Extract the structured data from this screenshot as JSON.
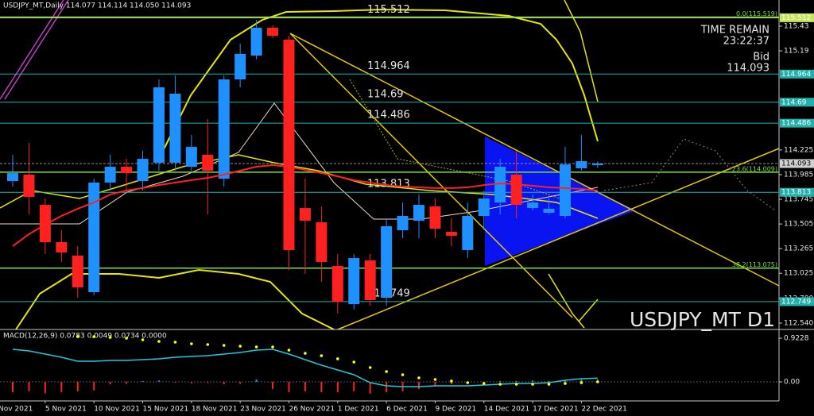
{
  "chart_data": [
    {
      "type": "candlestick",
      "header": "USDJPY_MT,Daily 114.077 114.114 114.050 114.093",
      "symbol_label": "USDJPY_MT D1",
      "timer_title": "TIME REMAIN",
      "timer": "23:22:37",
      "bid_title": "Bid",
      "edge_label": "Nov 2021",
      "categories": [
        null,
        null,
        "5 Nov 2021",
        null,
        null,
        "10 Nov 2021",
        null,
        null,
        "15 Nov 2021",
        null,
        null,
        "18 Nov 2021",
        null,
        null,
        "23 Nov 2021",
        null,
        null,
        "26 Nov 2021",
        null,
        null,
        "1 Dec 2021",
        null,
        null,
        "6 Dec 2021",
        null,
        null,
        "9 Dec 2021",
        null,
        null,
        "14 Dec 2021",
        null,
        null,
        "17 Dec 2021",
        null,
        null,
        "22 Dec 2021",
        null
      ],
      "open": [
        113.923,
        113.985,
        113.691,
        113.328,
        113.197,
        112.841,
        113.908,
        114.062,
        113.923,
        114.101,
        114.101,
        114.062,
        114.178,
        113.946,
        114.912,
        115.144,
        115.415,
        115.299,
        113.66,
        113.521,
        113.096,
        112.725,
        113.15,
        112.787,
        113.444,
        113.537,
        113.676,
        113.428,
        113.251,
        113.583,
        113.714,
        113.985,
        113.66,
        113.614,
        113.583,
        114.047,
        114.077
      ],
      "high": [
        114.178,
        114.294,
        113.753,
        113.444,
        113.289,
        113.946,
        114.178,
        114.139,
        114.217,
        114.912,
        114.951,
        114.371,
        114.526,
        114.951,
        115.26,
        115.492,
        115.438,
        115.337,
        113.946,
        113.676,
        113.212,
        113.212,
        113.212,
        113.56,
        113.714,
        113.792,
        113.753,
        113.56,
        113.714,
        113.83,
        114.139,
        114.217,
        113.792,
        113.753,
        114.255,
        114.371,
        114.114
      ],
      "low": [
        113.869,
        113.598,
        113.212,
        113.135,
        112.787,
        112.81,
        113.83,
        113.83,
        113.83,
        114.024,
        114.024,
        114.024,
        113.598,
        113.869,
        114.835,
        115.105,
        115.314,
        113.057,
        113.019,
        112.942,
        112.632,
        112.671,
        112.71,
        112.71,
        113.367,
        113.367,
        113.367,
        113.289,
        113.173,
        113.444,
        113.598,
        113.56,
        113.637,
        113.598,
        113.56,
        114.024,
        114.05
      ],
      "close": [
        114.0,
        113.769,
        113.328,
        113.228,
        112.888,
        113.908,
        114.062,
        114.0,
        114.139,
        114.835,
        114.773,
        114.255,
        114.024,
        114.912,
        115.16,
        115.415,
        115.337,
        113.251,
        113.537,
        113.135,
        112.748,
        113.173,
        112.764,
        113.483,
        113.583,
        113.691,
        113.459,
        113.39,
        113.583,
        113.753,
        114.062,
        113.691,
        113.714,
        113.653,
        114.085,
        114.116,
        114.093
      ],
      "up_color": "#1e90ff",
      "down_color": "#ff2020",
      "ma": {
        "color": "#ff2020",
        "values": [
          113.289,
          113.405,
          113.498,
          113.583,
          113.653,
          113.714,
          113.792,
          113.83,
          113.854,
          113.884,
          113.908,
          113.931,
          113.954,
          113.985,
          114.024,
          114.062,
          114.078,
          114.062,
          114.031,
          114.0,
          113.969,
          113.931,
          113.908,
          113.884,
          113.869,
          113.861,
          113.854,
          113.854,
          113.861,
          113.884,
          113.9,
          113.892,
          113.877,
          113.861,
          113.854,
          113.846,
          113.83
        ]
      },
      "levels": [
        {
          "value": 115.512,
          "color": "#c8e65a"
        },
        {
          "value": 114.964,
          "color": "#20b2aa"
        },
        {
          "value": 114.69,
          "color": "#20b2aa"
        },
        {
          "value": 114.486,
          "color": "#20b2aa"
        },
        {
          "value": 113.813,
          "color": "#20b2aa"
        },
        {
          "value": 112.749,
          "color": "#20b2aa"
        }
      ],
      "fib_levels": [
        {
          "value": 115.519,
          "label": "0.0(115.519)"
        },
        {
          "value": 114.009,
          "label": "23.6(114.009)"
        },
        {
          "value": 113.075,
          "label": "38.2(113.075)"
        }
      ],
      "fib_color": "#7cdc3c",
      "ylim": [
        112.478,
        115.685
      ],
      "yticks": [
        115.43,
        115.19,
        114.225,
        113.985,
        113.745,
        113.505,
        113.265,
        113.025,
        {
          "value": 112.78,
          "label": "112.780"
        },
        {
          "value": 112.54,
          "label": "112.540"
        }
      ]
    },
    {
      "type": "macd",
      "label": "MACD(12,26,9) 0.0783 0.0049 0.0734 0.0000",
      "histogram": [
        -0.22,
        -0.2,
        -0.24,
        -0.22,
        -0.2,
        -0.18,
        -0.05,
        -0.04,
        0.02,
        0.03,
        -0.02,
        -0.03,
        -0.02,
        -0.05,
        -0.04,
        0.05,
        -0.15,
        -0.22,
        -0.2,
        -0.22,
        -0.22,
        -0.2,
        -0.25,
        -0.22,
        -0.2,
        -0.15,
        -0.1,
        -0.05,
        -0.03,
        -0.02,
        0.02,
        0.02,
        0.03,
        0.02,
        0.03,
        0.05,
        0.05
      ],
      "line": {
        "color": "#20c8dc",
        "values": [
          0.688,
          0.654,
          0.587,
          0.52,
          0.436,
          0.436,
          0.453,
          0.453,
          0.47,
          0.487,
          0.52,
          0.537,
          0.554,
          0.587,
          0.621,
          0.671,
          0.688,
          0.587,
          0.47,
          0.352,
          0.252,
          0.151,
          -0.017,
          -0.084,
          -0.101,
          -0.101,
          -0.084,
          -0.084,
          -0.084,
          -0.067,
          -0.05,
          -0.034,
          -0.034,
          -0.017,
          0.034,
          0.067,
          0.078
        ]
      },
      "signal": {
        "color": "#ffff00",
        "values": [
          null,
          null,
          null,
          null,
          0.956,
          0.956,
          0.94,
          0.923,
          0.889,
          0.856,
          0.839,
          0.805,
          0.789,
          0.772,
          0.755,
          0.738,
          0.738,
          0.671,
          0.604,
          0.554,
          0.487,
          0.419,
          0.302,
          0.218,
          0.151,
          0.084,
          0.05,
          0.017,
          -0.017,
          -0.034,
          -0.05,
          -0.05,
          -0.05,
          -0.05,
          -0.034,
          -0.017,
          0.0
        ]
      },
      "ylim": [
        -0.403,
        1.091
      ],
      "yticks": [
        0.9228,
        {
          "value": 0,
          "label": "0.00"
        }
      ]
    }
  ]
}
